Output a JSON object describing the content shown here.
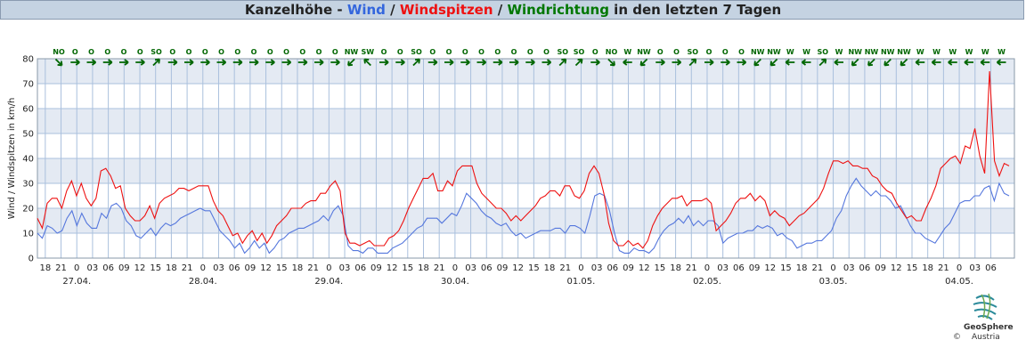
{
  "title": {
    "station": "Kanzelhöhe",
    "sep1": " - ",
    "wind": "Wind",
    "sep2": " / ",
    "gust": "Windspitzen",
    "sep3": " / ",
    "dir": "Windrichtung",
    "suffix": " in den letzten 7 Tagen"
  },
  "colors": {
    "wind": "#5577dd",
    "gust": "#ee1111",
    "dir": "#006600",
    "station": "#000000",
    "band": "#e4eaf3",
    "grid": "#aac0dd"
  },
  "logo": {
    "name": "GeoSphere",
    "sub": "Austria",
    "copyright": "©"
  },
  "chart_data": {
    "type": "line",
    "ylabel": "Wind / Windspitzen in km/h",
    "ylim": [
      0,
      80
    ],
    "yticks": [
      0,
      10,
      20,
      30,
      40,
      50,
      60,
      70,
      80
    ],
    "x_hours_labels": [
      "18",
      "21",
      "0",
      "03",
      "06",
      "09",
      "12",
      "15",
      "18",
      "21",
      "0",
      "03",
      "06",
      "09",
      "12",
      "15",
      "18",
      "21",
      "0",
      "03",
      "06",
      "09",
      "12",
      "15",
      "18",
      "21",
      "0",
      "03",
      "06",
      "09",
      "12",
      "15",
      "18",
      "21",
      "0",
      "03",
      "06",
      "09",
      "12",
      "15",
      "18",
      "21",
      "0",
      "03",
      "06",
      "09",
      "12",
      "15",
      "18",
      "21",
      "0",
      "03",
      "06",
      "09",
      "12",
      "15",
      "18",
      "21",
      "0",
      "03",
      "06"
    ],
    "date_labels": [
      "27.04.",
      "28.04.",
      "29.04.",
      "30.04.",
      "01.05.",
      "02.05.",
      "03.05.",
      "04.05."
    ],
    "directions": [
      "NO",
      "O",
      "O",
      "O",
      "O",
      "O",
      "SO",
      "O",
      "O",
      "O",
      "O",
      "O",
      "O",
      "O",
      "O",
      "O",
      "O",
      "O",
      "NW",
      "SW",
      "O",
      "O",
      "SO",
      "O",
      "O",
      "O",
      "O",
      "O",
      "O",
      "O",
      "O",
      "SO",
      "SO",
      "O",
      "NO",
      "W",
      "NW",
      "O",
      "O",
      "SO",
      "O",
      "O",
      "O",
      "NW",
      "NW",
      "W",
      "W",
      "SO",
      "W",
      "NW",
      "NW",
      "NW",
      "NW",
      "W",
      "W",
      "W",
      "W",
      "W",
      "W",
      "W"
    ],
    "direction_angles": [
      225,
      180,
      180,
      180,
      180,
      180,
      135,
      180,
      180,
      180,
      180,
      180,
      180,
      180,
      180,
      180,
      180,
      180,
      315,
      45,
      180,
      180,
      135,
      180,
      180,
      180,
      180,
      180,
      180,
      180,
      180,
      135,
      135,
      180,
      225,
      0,
      315,
      180,
      180,
      135,
      180,
      180,
      180,
      315,
      315,
      0,
      0,
      135,
      0,
      315,
      315,
      315,
      315,
      0,
      0,
      0,
      0,
      0,
      0,
      0
    ],
    "series": [
      {
        "name": "Wind",
        "values": [
          10,
          8,
          13,
          12,
          10,
          11,
          16,
          19,
          13,
          18,
          14,
          12,
          12,
          18,
          16,
          21,
          22,
          20,
          15,
          13,
          9,
          8,
          10,
          12,
          9,
          12,
          14,
          13,
          14,
          16,
          17,
          18,
          19,
          20,
          19,
          19,
          15,
          11,
          9,
          7,
          4,
          6,
          2,
          4,
          7,
          4,
          6,
          2,
          4,
          7,
          8,
          10,
          11,
          12,
          12,
          13,
          14,
          15,
          17,
          15,
          19,
          21,
          17,
          5,
          3,
          3,
          2,
          4,
          4,
          2,
          2,
          2,
          4,
          5,
          6,
          8,
          10,
          12,
          13,
          16,
          16,
          16,
          14,
          16,
          18,
          17,
          21,
          26,
          24,
          22,
          19,
          17,
          16,
          14,
          13,
          14,
          11,
          9,
          10,
          8,
          9,
          10,
          11,
          11,
          11,
          12,
          12,
          10,
          13,
          13,
          12,
          10,
          17,
          25,
          26,
          25,
          19,
          10,
          3,
          2,
          2,
          4,
          3,
          3,
          2,
          4,
          8,
          11,
          13,
          14,
          16,
          14,
          17,
          13,
          15,
          13,
          15,
          15,
          13,
          6,
          8,
          9,
          10,
          10,
          11,
          11,
          13,
          12,
          13,
          12,
          9,
          10,
          8,
          7,
          4,
          5,
          6,
          6,
          7,
          7,
          9,
          11,
          16,
          19,
          25,
          29,
          32,
          29,
          27,
          25,
          27,
          25,
          25,
          23,
          20,
          21,
          17,
          13,
          10,
          10,
          8,
          7,
          6,
          9,
          12,
          14,
          18,
          22,
          23,
          23,
          25,
          25,
          28,
          29,
          23,
          30,
          26,
          25
        ]
      },
      {
        "name": "Windspitzen",
        "values": [
          16,
          12,
          22,
          24,
          24,
          20,
          27,
          31,
          25,
          30,
          24,
          21,
          24,
          35,
          36,
          33,
          28,
          29,
          20,
          17,
          15,
          15,
          17,
          21,
          16,
          22,
          24,
          25,
          26,
          28,
          28,
          27,
          28,
          29,
          29,
          29,
          23,
          19,
          17,
          13,
          9,
          10,
          6,
          9,
          11,
          7,
          10,
          6,
          9,
          13,
          15,
          17,
          20,
          20,
          20,
          22,
          23,
          23,
          26,
          26,
          29,
          31,
          27,
          10,
          6,
          6,
          5,
          6,
          7,
          5,
          5,
          5,
          8,
          9,
          11,
          15,
          20,
          24,
          28,
          32,
          32,
          34,
          27,
          27,
          31,
          29,
          35,
          37,
          37,
          37,
          30,
          26,
          24,
          22,
          20,
          20,
          18,
          15,
          17,
          15,
          17,
          19,
          21,
          24,
          25,
          27,
          27,
          25,
          29,
          29,
          25,
          24,
          27,
          34,
          37,
          34,
          26,
          14,
          7,
          5,
          5,
          7,
          5,
          6,
          4,
          7,
          13,
          17,
          20,
          22,
          24,
          24,
          25,
          21,
          23,
          23,
          23,
          24,
          22,
          11,
          13,
          15,
          18,
          22,
          24,
          24,
          26,
          23,
          25,
          23,
          17,
          19,
          17,
          16,
          13,
          15,
          17,
          18,
          20,
          22,
          24,
          28,
          34,
          39,
          39,
          38,
          39,
          37,
          37,
          36,
          36,
          33,
          32,
          29,
          27,
          26,
          22,
          19,
          16,
          17,
          15,
          15,
          20,
          24,
          29,
          36,
          38,
          40,
          41,
          38,
          45,
          44,
          52,
          41,
          34,
          75,
          39,
          33,
          38,
          37
        ]
      }
    ]
  }
}
